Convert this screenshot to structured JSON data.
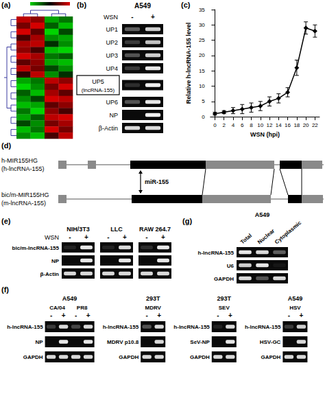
{
  "figure": {
    "a": {
      "label": "(a)",
      "heatmap": {
        "color_range": [
          -1,
          1
        ],
        "cells": [
          [
            0.8,
            0.6,
            -0.7,
            -0.5
          ],
          [
            0.5,
            0.9,
            -0.4,
            -0.8
          ],
          [
            0.9,
            0.4,
            -0.9,
            -0.3
          ],
          [
            0.3,
            0.7,
            -0.6,
            -0.7
          ],
          [
            0.7,
            0.8,
            -0.2,
            -0.6
          ],
          [
            0.6,
            0.3,
            -0.8,
            -0.9
          ],
          [
            0.9,
            0.7,
            -0.5,
            -0.4
          ],
          [
            0.4,
            0.6,
            -0.7,
            -0.8
          ],
          [
            0.8,
            0.5,
            -0.3,
            -0.6
          ],
          [
            0.2,
            0.8,
            -0.6,
            -0.2
          ],
          [
            -0.7,
            -0.5,
            0.8,
            0.6
          ],
          [
            -0.9,
            -0.6,
            0.5,
            0.9
          ],
          [
            -0.4,
            -0.8,
            0.7,
            0.4
          ],
          [
            -0.6,
            -0.3,
            0.9,
            0.8
          ],
          [
            -0.8,
            -0.7,
            0.4,
            0.6
          ],
          [
            -0.5,
            -0.9,
            0.6,
            0.3
          ],
          [
            -0.7,
            -0.4,
            0.8,
            0.9
          ],
          [
            -0.3,
            -0.6,
            0.5,
            0.7
          ],
          [
            -0.8,
            -0.5,
            0.9,
            0.5
          ],
          [
            -0.6,
            -0.8,
            0.3,
            0.8
          ]
        ]
      }
    },
    "b": {
      "label": "(b)",
      "cell_line": "A549",
      "treatment": "WSN",
      "lanes": [
        "-",
        "+"
      ],
      "rows": [
        {
          "name": "UP1",
          "bands": [
            0.35,
            0.8
          ]
        },
        {
          "name": "UP2",
          "bands": [
            0.2,
            0.75
          ]
        },
        {
          "name": "UP3",
          "bands": [
            0.3,
            0.8
          ]
        },
        {
          "name": "UP4",
          "bands": [
            0.2,
            0.9
          ]
        },
        {
          "name": "UP5",
          "note": "(lncRNA-155)",
          "boxed": true,
          "bands": [
            0.15,
            0.95
          ]
        },
        {
          "name": "UP6",
          "bands": [
            0.3,
            0.9
          ]
        },
        {
          "name": "NP",
          "bands": [
            0,
            0.95
          ]
        },
        {
          "name": "β-Actin",
          "bands": [
            0.85,
            0.85
          ]
        }
      ]
    },
    "c": {
      "label": "(c)"
    },
    "d": {
      "label": "(d)",
      "human": {
        "gene": "h-MIR155HG",
        "transcript": "(h-lncRNA-155)"
      },
      "mouse": {
        "gene": "bic/m-MIR155HG",
        "transcript": "(m-lncRNA-155)"
      },
      "mirna": "miR-155"
    },
    "e": {
      "label": "(e)",
      "treatment": "WSN",
      "lanes": [
        "-",
        "+"
      ],
      "groups": [
        "NIH/3T3",
        "LLC",
        "RAW 264.7"
      ],
      "rows": [
        {
          "name": "bic/m-lncRNA-155",
          "bands": [
            [
              0.1,
              0.9
            ],
            [
              0.1,
              0.85
            ],
            [
              0.15,
              0.9
            ]
          ]
        },
        {
          "name": "NP",
          "bands": [
            [
              0,
              0.9
            ],
            [
              0,
              0.9
            ],
            [
              0,
              0.9
            ]
          ]
        },
        {
          "name": "β-Actin",
          "bands": [
            [
              0.85,
              0.85
            ],
            [
              0.85,
              0.85
            ],
            [
              0.85,
              0.85
            ]
          ]
        }
      ]
    },
    "f": {
      "label": "(f)",
      "lanes": [
        "-",
        "+"
      ],
      "blocks": [
        {
          "cell_line": "A549",
          "viruses": [
            "CA/04",
            "PR8"
          ],
          "rows": [
            {
              "name": "h-lncRNA-155",
              "bands": [
                0.2,
                0.85,
                0.25,
                0.85
              ]
            },
            {
              "name": "NP",
              "bands": [
                0,
                0.9,
                0,
                0.9
              ]
            },
            {
              "name": "GAPDH",
              "bands": [
                0.85,
                0.85,
                0.85,
                0.85
              ]
            }
          ]
        },
        {
          "cell_line": "293T",
          "viruses": [
            "MDRV"
          ],
          "rows": [
            {
              "name": "h-lncRNA-155",
              "bands": [
                0.3,
                0.85
              ]
            },
            {
              "name": "MDRV p10.8",
              "bands": [
                0,
                0.85
              ]
            },
            {
              "name": "GAPDH",
              "bands": [
                0.85,
                0.85
              ]
            }
          ]
        },
        {
          "cell_line": "293T",
          "viruses": [
            "SEV"
          ],
          "rows": [
            {
              "name": "h-lncRNA-155",
              "bands": [
                0.1,
                0.85
              ]
            },
            {
              "name": "SeV-NP",
              "bands": [
                0,
                0.9
              ]
            },
            {
              "name": "GAPDH",
              "bands": [
                0.85,
                0.85
              ]
            }
          ]
        },
        {
          "cell_line": "A549",
          "viruses": [
            "HSV"
          ],
          "rows": [
            {
              "name": "h-lncRNA-155",
              "bands": [
                0.2,
                0.8
              ]
            },
            {
              "name": "HSV-GC",
              "bands": [
                0,
                0.85
              ]
            },
            {
              "name": "GAPDH",
              "bands": [
                0.85,
                0.85
              ]
            }
          ]
        }
      ]
    },
    "g": {
      "label": "(g)",
      "cell_line": "A549",
      "fractions": [
        "Total",
        "Nuclear",
        "Cytoplasmic"
      ],
      "rows": [
        {
          "name": "h-lncRNA-155",
          "bands": [
            0.9,
            0.85,
            0.35
          ]
        },
        {
          "name": "U6",
          "bands": [
            0.8,
            0.9,
            0.05
          ]
        },
        {
          "name": "GAPDH",
          "bands": [
            0.85,
            0.3,
            0.85
          ]
        }
      ]
    }
  },
  "chart_data": {
    "type": "line",
    "xlabel": "WSN (hpi)",
    "ylabel": "Relative h-lncRNA-155 level",
    "x": [
      0,
      2,
      4,
      6,
      8,
      10,
      12,
      14,
      16,
      18,
      20,
      22
    ],
    "values": [
      1,
      1.5,
      2,
      2.5,
      3,
      3.5,
      5,
      6,
      8,
      16,
      29,
      28
    ],
    "errors": [
      0.5,
      0.5,
      1,
      1.5,
      1.5,
      1.5,
      1.5,
      1.5,
      1.5,
      2.5,
      2,
      2
    ],
    "xlim": [
      -1,
      23
    ],
    "xticks": [
      0,
      2,
      4,
      6,
      8,
      10,
      12,
      14,
      16,
      18,
      20,
      22
    ],
    "ylim": [
      0,
      35
    ],
    "yticks": [
      0,
      5,
      10,
      15,
      20,
      25,
      30,
      35
    ],
    "color": "#000000",
    "marker": "diamond",
    "grid": false
  }
}
